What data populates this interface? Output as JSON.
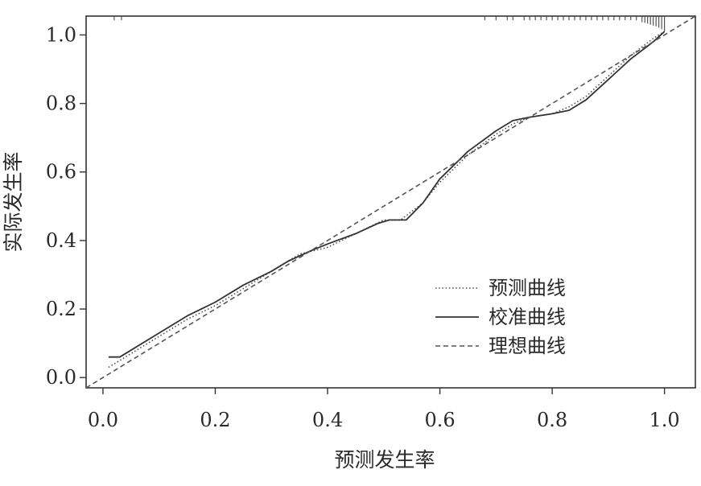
{
  "chart_data": {
    "type": "line",
    "title": "",
    "xlabel": "预测发生率",
    "ylabel": "实际发生率",
    "xlim": [
      -0.03,
      1.055
    ],
    "ylim": [
      -0.03,
      1.055
    ],
    "xticks": [
      0.0,
      0.2,
      0.4,
      0.6,
      0.8,
      1.0
    ],
    "yticks": [
      0.0,
      0.2,
      0.4,
      0.6,
      0.8,
      1.0
    ],
    "xtick_labels": [
      "0.0",
      "0.2",
      "0.4",
      "0.6",
      "0.8",
      "1.0"
    ],
    "ytick_labels": [
      "0.0",
      "0.2",
      "0.4",
      "0.6",
      "0.8",
      "1.0"
    ],
    "grid": false,
    "legend_position": "bottom-right",
    "series": [
      {
        "name": "预测曲线",
        "style": "dotted",
        "color": "#555555",
        "x": [
          0.01,
          0.05,
          0.1,
          0.15,
          0.2,
          0.25,
          0.3,
          0.35,
          0.4,
          0.45,
          0.5,
          0.53,
          0.57,
          0.6,
          0.65,
          0.7,
          0.73,
          0.76,
          0.8,
          0.83,
          0.86,
          0.9,
          0.94,
          0.98,
          1.0
        ],
        "y": [
          0.03,
          0.07,
          0.12,
          0.17,
          0.21,
          0.26,
          0.31,
          0.36,
          0.38,
          0.42,
          0.46,
          0.46,
          0.51,
          0.57,
          0.65,
          0.71,
          0.74,
          0.76,
          0.77,
          0.79,
          0.82,
          0.88,
          0.94,
          0.99,
          1.01
        ]
      },
      {
        "name": "校准曲线",
        "style": "solid",
        "color": "#333333",
        "x": [
          0.01,
          0.03,
          0.05,
          0.1,
          0.15,
          0.2,
          0.25,
          0.3,
          0.33,
          0.37,
          0.4,
          0.45,
          0.49,
          0.51,
          0.54,
          0.57,
          0.6,
          0.65,
          0.7,
          0.73,
          0.76,
          0.8,
          0.83,
          0.86,
          0.9,
          0.94,
          0.98,
          1.0
        ],
        "y": [
          0.06,
          0.06,
          0.08,
          0.13,
          0.18,
          0.22,
          0.27,
          0.31,
          0.34,
          0.37,
          0.39,
          0.42,
          0.45,
          0.46,
          0.46,
          0.51,
          0.58,
          0.66,
          0.72,
          0.75,
          0.76,
          0.77,
          0.78,
          0.81,
          0.87,
          0.93,
          0.98,
          1.01
        ]
      },
      {
        "name": "理想曲线",
        "style": "dashed",
        "color": "#555555",
        "x": [
          -0.03,
          1.055
        ],
        "y": [
          -0.03,
          1.055
        ]
      }
    ],
    "rug_ticks": {
      "x": [
        0.02,
        0.033,
        0.68,
        0.7,
        0.72,
        0.73,
        0.75,
        0.76,
        0.77,
        0.78,
        0.79,
        0.8,
        0.81,
        0.82,
        0.83,
        0.84,
        0.85,
        0.86,
        0.87,
        0.88,
        0.89,
        0.9,
        0.91,
        0.92,
        0.93,
        0.94,
        0.95,
        0.96,
        0.965,
        0.97,
        0.975,
        0.98,
        0.985,
        0.99,
        0.995,
        1.0
      ],
      "len": [
        0.012,
        0.012,
        0.012,
        0.012,
        0.012,
        0.012,
        0.012,
        0.012,
        0.012,
        0.012,
        0.012,
        0.012,
        0.012,
        0.012,
        0.012,
        0.012,
        0.012,
        0.012,
        0.012,
        0.012,
        0.012,
        0.012,
        0.012,
        0.012,
        0.012,
        0.012,
        0.012,
        0.018,
        0.02,
        0.022,
        0.025,
        0.028,
        0.03,
        0.034,
        0.038,
        0.045
      ]
    }
  }
}
